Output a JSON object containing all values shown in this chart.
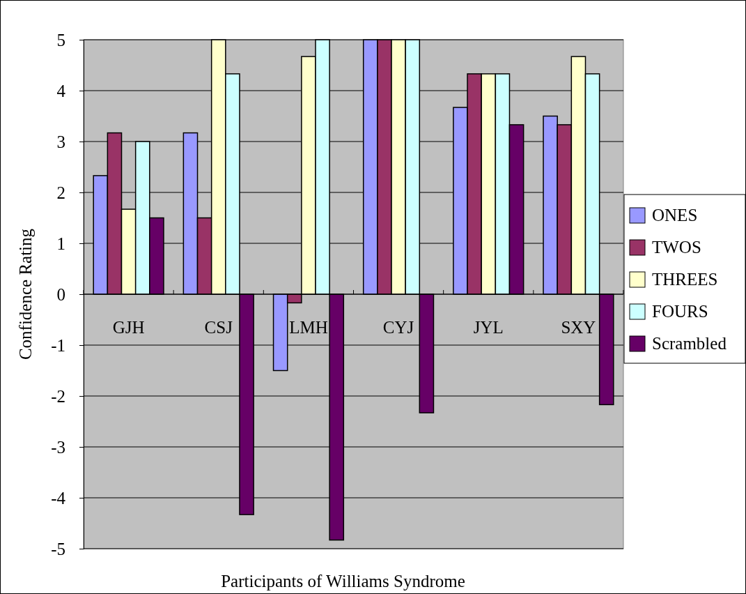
{
  "chart_data": {
    "type": "bar",
    "xlabel": "Participants of Williams Syndrome",
    "ylabel": "Confidence Rating",
    "categories": [
      "GJH",
      "CSJ",
      "LMH",
      "CYJ",
      "JYL",
      "SXY"
    ],
    "series": [
      {
        "name": "ONES",
        "color": "#9999ff",
        "values": [
          2.33,
          3.17,
          -1.5,
          5,
          3.67,
          3.5
        ]
      },
      {
        "name": "TWOS",
        "color": "#993366",
        "values": [
          3.17,
          1.5,
          -0.17,
          5,
          4.33,
          3.33
        ]
      },
      {
        "name": "THREES",
        "color": "#ffffcc",
        "values": [
          1.67,
          5,
          4.67,
          5,
          4.33,
          4.67
        ]
      },
      {
        "name": "FOURS",
        "color": "#ccffff",
        "values": [
          3,
          4.33,
          5,
          5,
          4.33,
          4.33
        ]
      },
      {
        "name": "Scrambled",
        "color": "#660066",
        "values": [
          1.5,
          -4.33,
          -4.83,
          -2.33,
          3.33,
          -2.17
        ]
      }
    ],
    "ylim": [
      -5,
      5
    ],
    "yticks": [
      -5,
      -4,
      -3,
      -2,
      -1,
      0,
      1,
      2,
      3,
      4,
      5
    ],
    "grid": "y",
    "legend": "right"
  }
}
